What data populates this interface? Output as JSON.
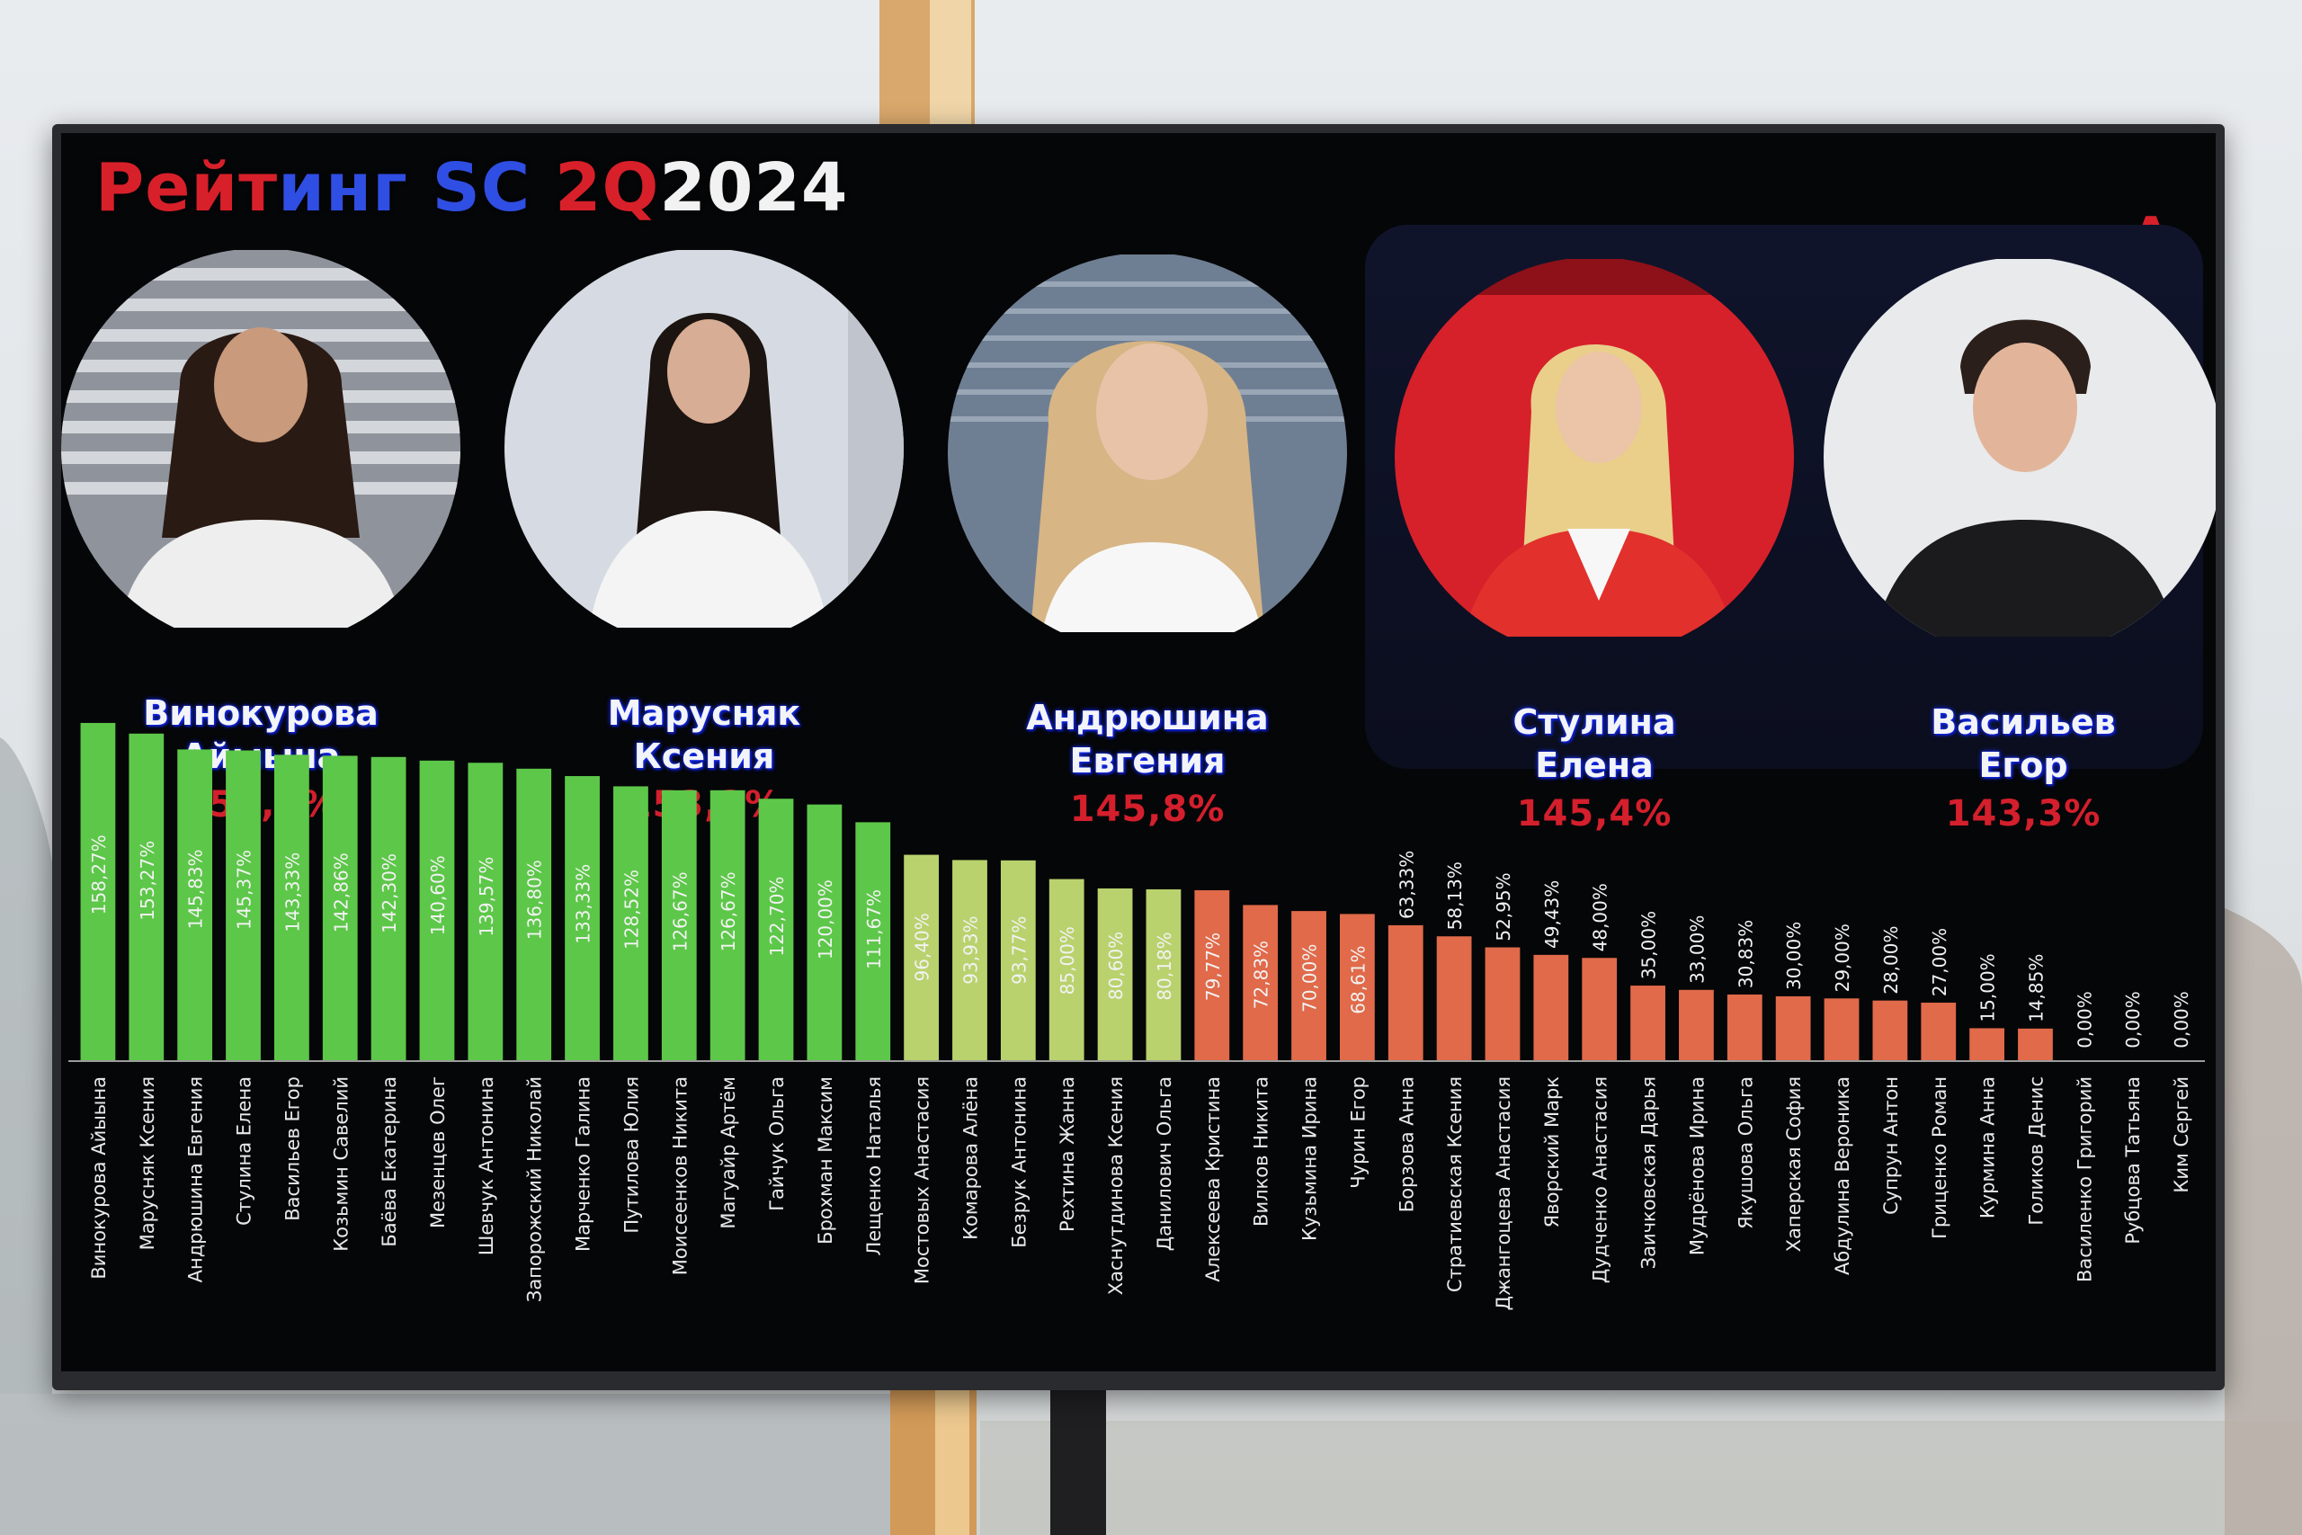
{
  "title": {
    "part1": "Рейт",
    "part2": "инг SC ",
    "part3": "2Q",
    "part4": "2024"
  },
  "logo_letter": "А",
  "top5": [
    {
      "first_line": "Винокурова",
      "second_line": "Айыына",
      "percent": "158,3%"
    },
    {
      "first_line": "Маруcняк",
      "second_line": "Ксения",
      "percent": "153,3%"
    },
    {
      "first_line": "Андрюшина",
      "second_line": "Евгения",
      "percent": "145,8%"
    },
    {
      "first_line": "Стулина",
      "second_line": "Елена",
      "percent": "145,4%"
    },
    {
      "first_line": "Васильев",
      "second_line": "Егор",
      "percent": "143,3%"
    }
  ],
  "colors": {
    "green": "#5dc749",
    "yellow_green": "#b9d26d",
    "salmon": "#e06a4a",
    "title_red": "#d8202a",
    "title_blue": "#2f4ee3"
  },
  "chart_data": {
    "type": "bar",
    "categories": [
      "Винокурова Айыына",
      "Марусняк Ксения",
      "Андрюшина Евгения",
      "Стулина Елена",
      "Васильев Егор",
      "Козьмин Савелий",
      "Баёва Екатерина",
      "Мезенцев Олег",
      "Шевчук Антонина",
      "Запорожский Николай",
      "Марченко Галина",
      "Путилова Юлия",
      "Моисеенков Никита",
      "Магуайр Артём",
      "Гайчук Ольга",
      "Брохман Максим",
      "Лещенко Наталья",
      "Мостовых Анастасия",
      "Комарова Алёна",
      "Безрук Антонина",
      "Рехтина Жанна",
      "Хаснутдинова Ксения",
      "Данилович Ольга",
      "Алексеева Кристина",
      "Вилков Никита",
      "Кузьмина Ирина",
      "Чурин Егор",
      "Борзова Анна",
      "Стратиевская Ксения",
      "Джангоцева Анастасия",
      "Яворский Марк",
      "Дудченко Анастасия",
      "Заичковская Дарья",
      "Мудрёнова Ирина",
      "Якушова Ольга",
      "Хаперская София",
      "Абдулина Вероника",
      "Супрун Антон",
      "Гриценко Роман",
      "Курмина Анна",
      "Голиков Денис",
      "Василенко Григорий",
      "Рубцова Татьяна",
      "Ким Сергей"
    ],
    "values": [
      158.27,
      153.27,
      145.83,
      145.37,
      143.33,
      142.86,
      142.3,
      140.6,
      139.57,
      136.8,
      133.33,
      128.52,
      126.67,
      126.67,
      122.7,
      120.0,
      111.67,
      96.4,
      93.93,
      93.77,
      85.0,
      80.6,
      80.18,
      79.77,
      72.83,
      70.0,
      68.61,
      63.33,
      58.13,
      52.95,
      49.43,
      48.0,
      35.0,
      33.0,
      30.83,
      30.0,
      29.0,
      28.0,
      27.0,
      15.0,
      14.85,
      0.0,
      0.0,
      0.0
    ],
    "labels": [
      "158,27%",
      "153,27%",
      "145,83%",
      "145,37%",
      "143,33%",
      "142,86%",
      "142,30%",
      "140,60%",
      "139,57%",
      "136,80%",
      "133,33%",
      "128,52%",
      "126,67%",
      "126,67%",
      "122,70%",
      "120,00%",
      "111,67%",
      "96,40%",
      "93,93%",
      "93,77%",
      "85,00%",
      "80,60%",
      "80,18%",
      "79,77%",
      "72,83%",
      "70,00%",
      "68,61%",
      "63,33%",
      "58,13%",
      "52,95%",
      "49,43%",
      "48,00%",
      "35,00%",
      "33,00%",
      "30,83%",
      "30,00%",
      "29,00%",
      "28,00%",
      "27,00%",
      "15,00%",
      "14,85%",
      "0,00%",
      "0,00%",
      "0,00%"
    ],
    "color_bands": [
      "green",
      "green",
      "green",
      "green",
      "green",
      "green",
      "green",
      "green",
      "green",
      "green",
      "green",
      "green",
      "green",
      "green",
      "green",
      "green",
      "green",
      "yellow_green",
      "yellow_green",
      "yellow_green",
      "yellow_green",
      "yellow_green",
      "yellow_green",
      "salmon",
      "salmon",
      "salmon",
      "salmon",
      "salmon",
      "salmon",
      "salmon",
      "salmon",
      "salmon",
      "salmon",
      "salmon",
      "salmon",
      "salmon",
      "salmon",
      "salmon",
      "salmon",
      "salmon",
      "salmon",
      "salmon",
      "salmon",
      "salmon"
    ],
    "ylim": [
      0,
      165
    ],
    "grid": false,
    "legend": "none"
  }
}
